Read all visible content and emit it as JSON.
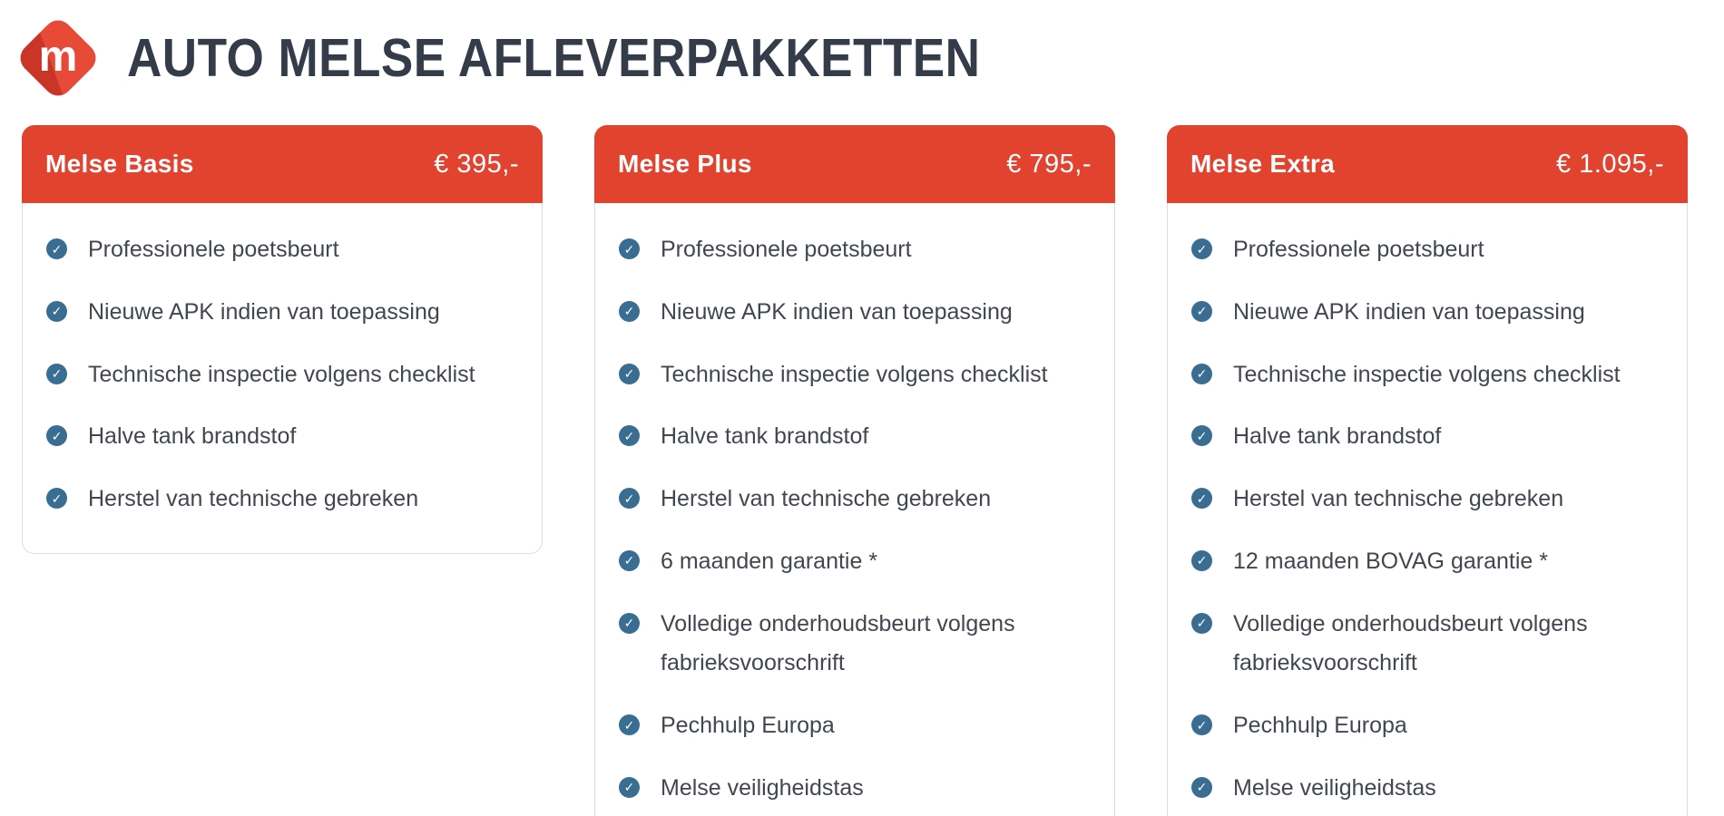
{
  "header": {
    "title": "AUTO MELSE AFLEVERPAKKETTEN",
    "logo_letter": "m"
  },
  "icons": {
    "check_glyph": "✓"
  },
  "colors": {
    "accent_red": "#e2432f",
    "logo_red_dark": "#c93627",
    "check_blue": "#3a6d92",
    "title_dark": "#343b49",
    "text_gray": "#41474f",
    "card_border": "#cfe0ec"
  },
  "packages": [
    {
      "name": "Melse Basis",
      "price": "€ 395,-",
      "features": [
        "Professionele poetsbeurt",
        "Nieuwe APK indien van toepassing",
        "Technische inspectie volgens checklist",
        "Halve tank brandstof",
        "Herstel van technische gebreken"
      ]
    },
    {
      "name": "Melse Plus",
      "price": "€ 795,-",
      "features": [
        "Professionele poetsbeurt",
        "Nieuwe APK indien van toepassing",
        "Technische inspectie volgens checklist",
        "Halve tank brandstof",
        "Herstel van technische gebreken",
        "6 maanden garantie *",
        "Volledige onderhoudsbeurt volgens fabrieksvoorschrift",
        "Pechhulp Europa",
        "Melse veiligheidstas"
      ]
    },
    {
      "name": "Melse Extra",
      "price": "€ 1.095,-",
      "features": [
        "Professionele poetsbeurt",
        "Nieuwe APK indien van toepassing",
        "Technische inspectie volgens checklist",
        "Halve tank brandstof",
        "Herstel van technische gebreken",
        "12 maanden BOVAG garantie *",
        "Volledige onderhoudsbeurt volgens fabrieksvoorschrift",
        "Pechhulp Europa",
        "Melse veiligheidstas"
      ]
    }
  ]
}
